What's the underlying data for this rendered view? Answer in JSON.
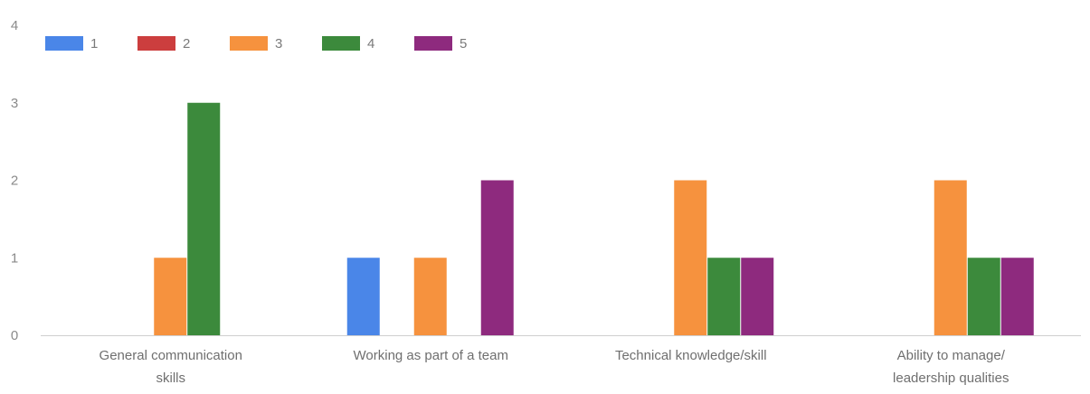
{
  "chart_data": {
    "type": "bar",
    "categories": [
      [
        "General communication",
        "skills"
      ],
      [
        "Working as part of a team"
      ],
      [
        "Technical knowledge/skill"
      ],
      [
        "Ability to manage/",
        "leadership qualities"
      ]
    ],
    "series": [
      {
        "name": "1",
        "color": "#4a86e8",
        "values": [
          0,
          1,
          0,
          0
        ]
      },
      {
        "name": "2",
        "color": "#cc3e3e",
        "values": [
          0,
          0,
          0,
          0
        ]
      },
      {
        "name": "3",
        "color": "#f6923e",
        "values": [
          1,
          1,
          2,
          2
        ]
      },
      {
        "name": "4",
        "color": "#3c8a3c",
        "values": [
          3,
          0,
          1,
          1
        ]
      },
      {
        "name": "5",
        "color": "#8e2a7e",
        "values": [
          0,
          2,
          1,
          1
        ]
      }
    ],
    "ylim": [
      0,
      4
    ],
    "yticks": [
      0,
      1,
      2,
      3,
      4
    ],
    "legend_position": "top-left",
    "grid": false
  }
}
